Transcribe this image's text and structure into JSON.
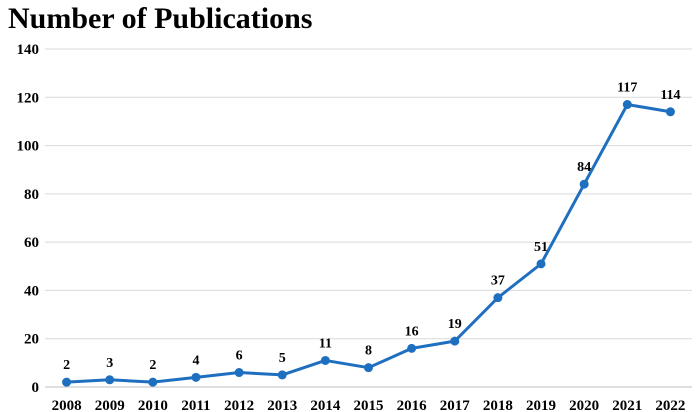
{
  "chart_data": {
    "type": "line",
    "title": "Number of Publications",
    "xlabel": "",
    "ylabel": "",
    "categories": [
      "2008",
      "2009",
      "2010",
      "2011",
      "2012",
      "2013",
      "2014",
      "2015",
      "2016",
      "2017",
      "2018",
      "2019",
      "2020",
      "2021",
      "2022"
    ],
    "series": [
      {
        "values": [
          2,
          3,
          2,
          4,
          6,
          5,
          11,
          8,
          16,
          19,
          37,
          51,
          84,
          117,
          114
        ]
      }
    ],
    "ylim": [
      0,
      140
    ],
    "yticks": [
      0,
      20,
      40,
      60,
      80,
      100,
      120,
      140
    ],
    "grid": "horizontal",
    "legend": "none",
    "data_labels": true,
    "colors": {
      "line": "#1f6fc0",
      "grid": "#d9d9d9",
      "axis": "#bfbfbf"
    }
  }
}
